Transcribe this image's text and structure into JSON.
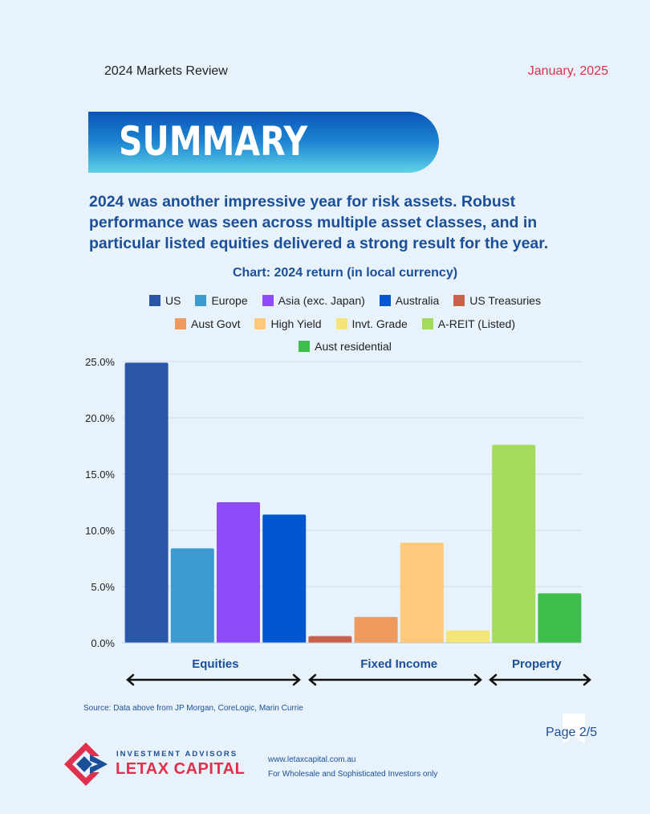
{
  "header": {
    "left": "2024 Markets Review",
    "right": "January, 2025"
  },
  "banner": {
    "title": "SUMMARY"
  },
  "intro": "2024 was another impressive year for risk assets. Robust performance was seen across multiple asset classes, and in particular listed equities delivered a strong result for the year.",
  "chart_data": {
    "type": "bar",
    "title": "Chart: 2024 return (in local currency)",
    "ylim": [
      0,
      25
    ],
    "yticks": [
      "0.0%",
      "5.0%",
      "10.0%",
      "15.0%",
      "20.0%",
      "25.0%"
    ],
    "grid": true,
    "legend_position": "top",
    "series": [
      {
        "name": "US",
        "value": 24.9,
        "color": "#2a56a8",
        "group": "Equities"
      },
      {
        "name": "Europe",
        "value": 8.4,
        "color": "#3e9bd2",
        "group": "Equities"
      },
      {
        "name": "Asia (exc. Japan)",
        "value": 12.5,
        "color": "#8e4cf9",
        "group": "Equities"
      },
      {
        "name": "Australia",
        "value": 11.4,
        "color": "#0257d0",
        "group": "Equities"
      },
      {
        "name": "US Treasuries",
        "value": 0.6,
        "color": "#c8604a",
        "group": "Fixed Income"
      },
      {
        "name": "Aust Govt",
        "value": 2.3,
        "color": "#ee9a5e",
        "group": "Fixed Income"
      },
      {
        "name": "High Yield",
        "value": 8.9,
        "color": "#fec97a",
        "group": "Fixed Income"
      },
      {
        "name": "Invt. Grade",
        "value": 1.1,
        "color": "#f4e47a",
        "group": "Fixed Income"
      },
      {
        "name": "A-REIT (Listed)",
        "value": 17.6,
        "color": "#a5da5a",
        "group": "Property"
      },
      {
        "name": "Aust residential",
        "value": 4.4,
        "color": "#3fbe4e",
        "group": "Property"
      }
    ],
    "groups": [
      "Equities",
      "Fixed Income",
      "Property"
    ]
  },
  "source": "Source: Data above from JP Morgan, CoreLogic, Marin Currie",
  "page": "Page 2/5",
  "logo": {
    "sub": "INVESTMENT ADVISORS",
    "main": "LETAX CAPITAL"
  },
  "footer": {
    "url": "www.letaxcapital.com.au",
    "note": "For Wholesale and Sophisticated Investors only"
  }
}
